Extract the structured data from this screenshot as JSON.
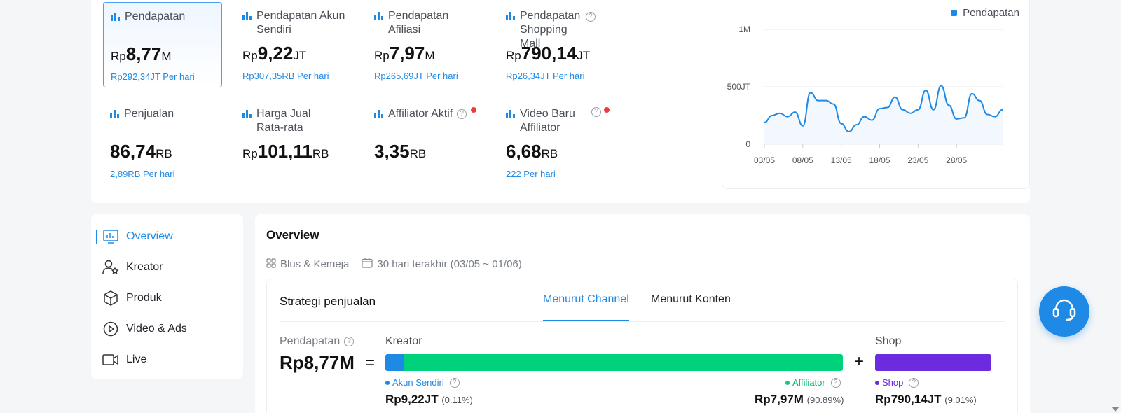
{
  "metrics": [
    {
      "title": "Pendapatan",
      "cur": "Rp",
      "value": "8,77",
      "unit": "M",
      "sub": "Rp292,34JT Per hari"
    },
    {
      "title": "Pendapatan Akun Sendiri",
      "cur": "Rp",
      "value": "9,22",
      "unit": "JT",
      "sub": "Rp307,35RB Per hari"
    },
    {
      "title": "Pendapatan Afiliasi",
      "cur": "Rp",
      "value": "7,97",
      "unit": "M",
      "sub": "Rp265,69JT Per hari"
    },
    {
      "title": "Pendapatan Shopping Mall",
      "cur": "Rp",
      "value": "790,14",
      "unit": "JT",
      "sub": "Rp26,34JT Per hari"
    },
    {
      "title": "Penjualan",
      "cur": "",
      "value": "86,74",
      "unit": "RB",
      "sub": "2,89RB Per hari"
    },
    {
      "title": "Harga Jual Rata-rata",
      "cur": "Rp",
      "value": "101,11",
      "unit": "RB",
      "sub": ""
    },
    {
      "title": "Affiliator Aktif",
      "cur": "",
      "value": "3,35",
      "unit": "RB",
      "sub": ""
    },
    {
      "title": "Video Baru Affiliator",
      "cur": "",
      "value": "6,68",
      "unit": "RB",
      "sub": "222 Per hari"
    }
  ],
  "chart_data": {
    "type": "area",
    "series": [
      {
        "name": "Pendapatan",
        "values": [
          190,
          250,
          270,
          240,
          280,
          160,
          450,
          380,
          380,
          350,
          180,
          110,
          170,
          240,
          210,
          310,
          320,
          410,
          300,
          270,
          300,
          470,
          300,
          510,
          340,
          220,
          230,
          440,
          380,
          260,
          240,
          300
        ]
      }
    ],
    "x_ticks": [
      "03/05",
      "08/05",
      "13/05",
      "18/05",
      "23/05",
      "28/05"
    ],
    "y_ticks": [
      "1M",
      "500JT",
      "0"
    ],
    "ylim": [
      0,
      1000
    ],
    "legend": "top-right",
    "color": "#1f8ae6"
  },
  "nav": {
    "items": [
      {
        "label": "Overview"
      },
      {
        "label": "Kreator"
      },
      {
        "label": "Produk"
      },
      {
        "label": "Video & Ads"
      },
      {
        "label": "Live"
      }
    ]
  },
  "overview": {
    "title": "Overview",
    "category": "Blus & Kemeja",
    "date_range": "30 hari terakhir (03/05 ~ 01/06)"
  },
  "strategy": {
    "title": "Strategi penjualan",
    "tabs": [
      "Menurut Channel",
      "Menurut Konten"
    ],
    "revenue_label": "Pendapatan",
    "revenue_value": "Rp8,77M",
    "equals": "=",
    "plus": "+",
    "kreator_label": "Kreator",
    "shop_label": "Shop",
    "akun_sendiri": {
      "label": "Akun Sendiri",
      "amount": "Rp9,22JT",
      "pct": "(0.11%)",
      "color": "#1f8ae6"
    },
    "affiliator": {
      "label": "Affiliator",
      "amount": "Rp7,97M",
      "pct": "(90.89%)",
      "color": "#00d17b"
    },
    "shop": {
      "label": "Shop",
      "amount": "Rp790,14JT",
      "pct": "(9.01%)",
      "color": "#6d2be0"
    }
  }
}
